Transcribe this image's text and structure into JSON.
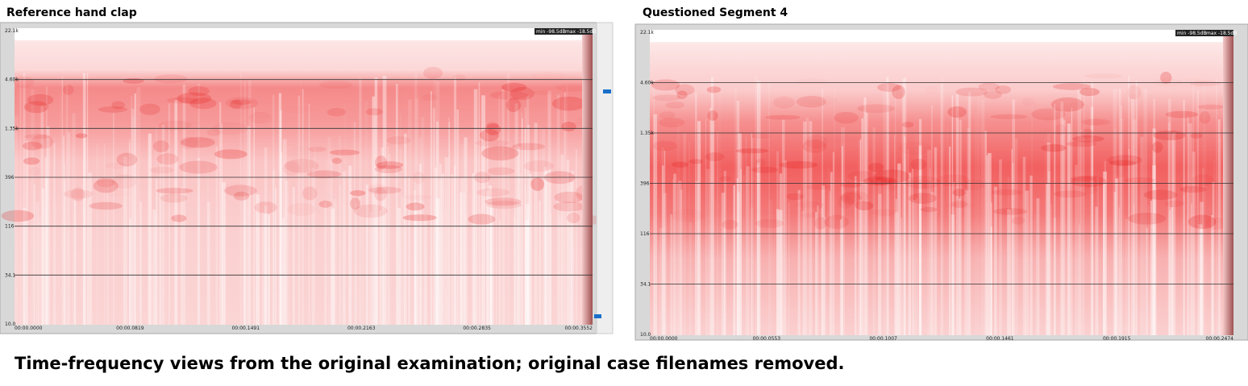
{
  "panels": [
    {
      "title": "Reference hand clap",
      "level_range": [
        "min -98.5dB",
        "max -18.5dB"
      ],
      "frequency_labels": [
        "22.1k",
        "4.60k",
        "1.35k",
        "396",
        "116",
        "34.1",
        "10.0"
      ],
      "time_labels": [
        "00:00.0000",
        "00:00.0819",
        "00:00.1491",
        "00:00.2163",
        "00:00.2835",
        "00:00.3552"
      ]
    },
    {
      "title": "Questioned Segment 4",
      "level_range": [
        "min -98.5dB",
        "max -18.5dB"
      ],
      "frequency_labels": [
        "22.1k",
        "4.60k",
        "1.35k",
        "396",
        "116",
        "34.1",
        "10.0"
      ],
      "time_labels": [
        "00:00.0000",
        "00:00.0553",
        "00:00.1007",
        "00:00.1461",
        "00:00.1915",
        "00:00.2474"
      ]
    }
  ],
  "caption": "Time-frequency views from the original examination; original case filenames removed."
}
